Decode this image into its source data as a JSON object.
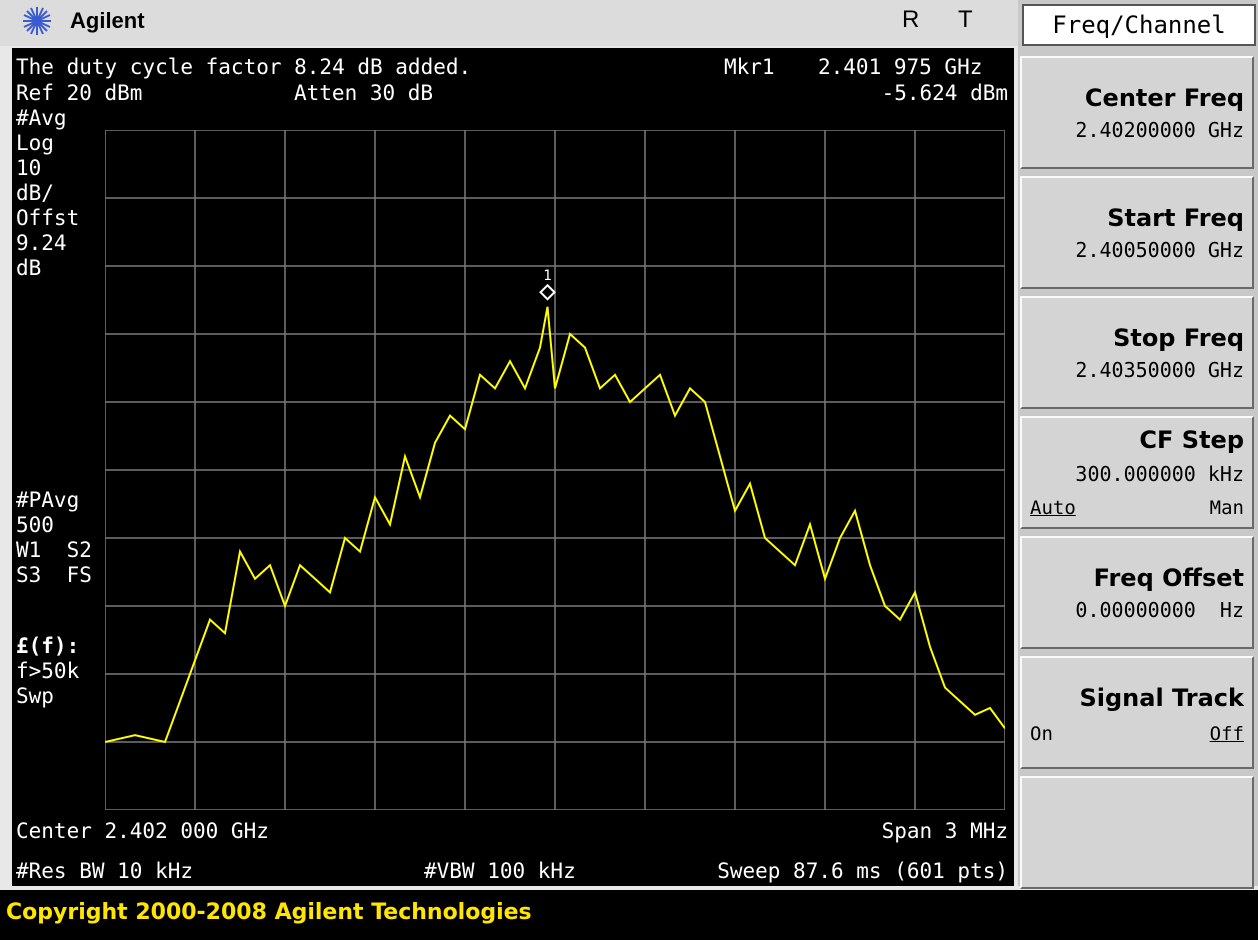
{
  "header": {
    "brand": "Agilent",
    "indicator_r": "R",
    "indicator_t": "T"
  },
  "screen": {
    "message": "The duty cycle factor 8.24 dB added.",
    "marker_label": "Mkr1",
    "marker_freq": "2.401 975 GHz",
    "marker_level": "-5.624 dBm",
    "ref_level": "Ref 20 dBm",
    "atten": "Atten 30 dB",
    "left_annotations": [
      "#Avg",
      "Log",
      "10",
      "dB/",
      "Offst",
      "9.24",
      "dB"
    ],
    "left_annotations_2": [
      "#PAvg",
      "500",
      "W1  S2",
      "S3  FS"
    ],
    "left_annotations_3": [
      "£(f):",
      "f>50k",
      "Swp"
    ],
    "marker_number": "1",
    "center": "Center 2.402 000 GHz",
    "span": "Span 3 MHz",
    "res_bw": "#Res BW 10 kHz",
    "vbw": "#VBW 100 kHz",
    "sweep": "Sweep 87.6 ms (601 pts)"
  },
  "chart_data": {
    "type": "line",
    "grid": true,
    "x_range_ghz": [
      2.4005,
      2.4035
    ],
    "y_range_dbm": [
      -80,
      20
    ],
    "trace_color": "#ffff00",
    "grid_color": "#7a7a7a",
    "marker": {
      "freq_ghz": 2.401975,
      "level_dbm": -5.624
    },
    "series": [
      {
        "x_ghz": [
          2.4005,
          2.4006,
          2.4007,
          2.40075,
          2.4008,
          2.40085,
          2.4009,
          2.40095,
          2.401,
          2.40105,
          2.4011,
          2.40115,
          2.4012,
          2.40125,
          2.4013,
          2.40135,
          2.4014,
          2.40145,
          2.4015,
          2.40155,
          2.4016,
          2.40165,
          2.4017,
          2.40175,
          2.4018,
          2.40185,
          2.4019,
          2.40195,
          2.401975,
          2.402,
          2.40205,
          2.4021,
          2.40215,
          2.4022,
          2.40225,
          2.4023,
          2.40235,
          2.4024,
          2.40245,
          2.4025,
          2.40255,
          2.4026,
          2.40265,
          2.4027,
          2.40275,
          2.4028,
          2.40285,
          2.4029,
          2.40295,
          2.403,
          2.40305,
          2.4031,
          2.40315,
          2.4032,
          2.40325,
          2.4033,
          2.40335,
          2.4034,
          2.40345,
          2.4035
        ],
        "dbm": [
          -70,
          -69,
          -70,
          -64,
          -58,
          -52,
          -54,
          -42,
          -46,
          -44,
          -50,
          -44,
          -46,
          -48,
          -40,
          -42,
          -34,
          -38,
          -28,
          -34,
          -26,
          -22,
          -24,
          -16,
          -18,
          -14,
          -18,
          -12,
          -6,
          -18,
          -10,
          -12,
          -18,
          -16,
          -20,
          -18,
          -16,
          -22,
          -18,
          -20,
          -28,
          -36,
          -32,
          -40,
          -42,
          -44,
          -38,
          -46,
          -40,
          -36,
          -44,
          -50,
          -52,
          -48,
          -56,
          -62,
          -64,
          -66,
          -65,
          -68
        ]
      }
    ]
  },
  "softkeys": {
    "menu_title": "Freq/Channel",
    "items": [
      {
        "label": "Center Freq",
        "value": "2.40200000 GHz"
      },
      {
        "label": "Start Freq",
        "value": "2.40050000 GHz"
      },
      {
        "label": "Stop Freq",
        "value": "2.40350000 GHz"
      },
      {
        "label": "CF Step",
        "value": "300.000000 kHz",
        "opt_left": "Auto",
        "opt_right": "Man"
      },
      {
        "label": "Freq Offset",
        "value": "0.00000000  Hz"
      },
      {
        "label": "Signal Track",
        "opt_left": "On",
        "opt_right": "Off"
      }
    ]
  },
  "status": {
    "copyright": "Copyright 2000-2008 Agilent Technologies"
  }
}
